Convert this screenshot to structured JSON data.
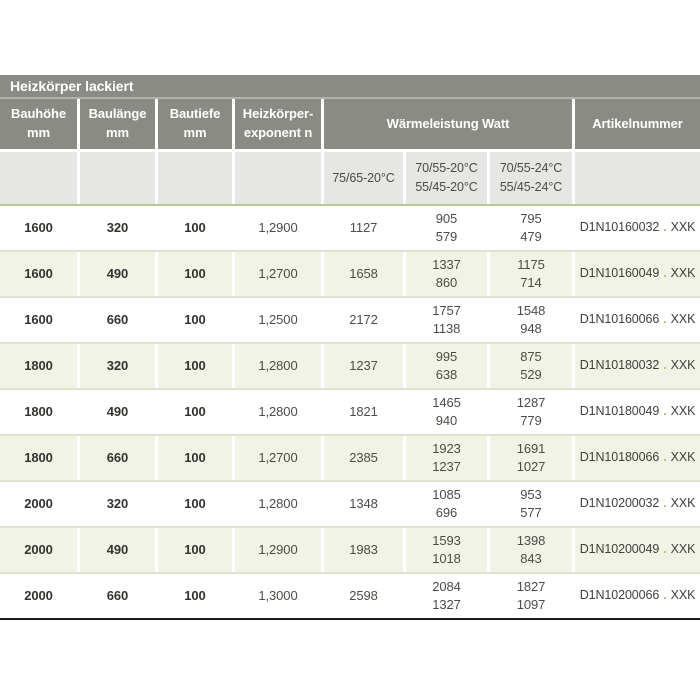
{
  "title_bar": {
    "label": "Heizkörper lackiert"
  },
  "header": {
    "columns": [
      {
        "line1": "Bauhöhe",
        "line2": "mm"
      },
      {
        "line1": "Baulänge",
        "line2": "mm"
      },
      {
        "line1": "Bautiefe",
        "line2": "mm"
      },
      {
        "line1": "Heizkörper-",
        "line2": "exponent n"
      },
      {
        "line1": "Artikelnummer",
        "line2": ""
      }
    ],
    "watt_group_label": "Wärmeleistung Watt",
    "subcolumns": [
      {
        "line1": "75/65-20°C",
        "line2": ""
      },
      {
        "line1": "70/55-20°C",
        "line2": "55/45-20°C"
      },
      {
        "line1": "70/55-24°C",
        "line2": "55/45-24°C"
      }
    ]
  },
  "separator_dot": ".",
  "rows": [
    {
      "bauhoehe": "1600",
      "baulaenge": "320",
      "bautiefe": "100",
      "exponent": "1,2900",
      "w1": "1127",
      "w2_top": "905",
      "w2_bottom": "579",
      "w3_top": "795",
      "w3_bottom": "479",
      "artikel": "D1N10160032",
      "suffix": "XXK"
    },
    {
      "bauhoehe": "1600",
      "baulaenge": "490",
      "bautiefe": "100",
      "exponent": "1,2700",
      "w1": "1658",
      "w2_top": "1337",
      "w2_bottom": "860",
      "w3_top": "1175",
      "w3_bottom": "714",
      "artikel": "D1N10160049",
      "suffix": "XXK"
    },
    {
      "bauhoehe": "1600",
      "baulaenge": "660",
      "bautiefe": "100",
      "exponent": "1,2500",
      "w1": "2172",
      "w2_top": "1757",
      "w2_bottom": "1138",
      "w3_top": "1548",
      "w3_bottom": "948",
      "artikel": "D1N10160066",
      "suffix": "XXK"
    },
    {
      "bauhoehe": "1800",
      "baulaenge": "320",
      "bautiefe": "100",
      "exponent": "1,2800",
      "w1": "1237",
      "w2_top": "995",
      "w2_bottom": "638",
      "w3_top": "875",
      "w3_bottom": "529",
      "artikel": "D1N10180032",
      "suffix": "XXK"
    },
    {
      "bauhoehe": "1800",
      "baulaenge": "490",
      "bautiefe": "100",
      "exponent": "1,2800",
      "w1": "1821",
      "w2_top": "1465",
      "w2_bottom": "940",
      "w3_top": "1287",
      "w3_bottom": "779",
      "artikel": "D1N10180049",
      "suffix": "XXK"
    },
    {
      "bauhoehe": "1800",
      "baulaenge": "660",
      "bautiefe": "100",
      "exponent": "1,2700",
      "w1": "2385",
      "w2_top": "1923",
      "w2_bottom": "1237",
      "w3_top": "1691",
      "w3_bottom": "1027",
      "artikel": "D1N10180066",
      "suffix": "XXK"
    },
    {
      "bauhoehe": "2000",
      "baulaenge": "320",
      "bautiefe": "100",
      "exponent": "1,2800",
      "w1": "1348",
      "w2_top": "1085",
      "w2_bottom": "696",
      "w3_top": "953",
      "w3_bottom": "577",
      "artikel": "D1N10200032",
      "suffix": "XXK"
    },
    {
      "bauhoehe": "2000",
      "baulaenge": "490",
      "bautiefe": "100",
      "exponent": "1,2900",
      "w1": "1983",
      "w2_top": "1593",
      "w2_bottom": "1018",
      "w3_top": "1398",
      "w3_bottom": "843",
      "artikel": "D1N10200049",
      "suffix": "XXK"
    },
    {
      "bauhoehe": "2000",
      "baulaenge": "660",
      "bautiefe": "100",
      "exponent": "1,3000",
      "w1": "2598",
      "w2_top": "2084",
      "w2_bottom": "1327",
      "w3_top": "1827",
      "w3_bottom": "1097",
      "artikel": "D1N10200066",
      "suffix": "XXK"
    }
  ],
  "colors": {
    "header_gray": "#8b8b86",
    "subheader_gray": "#e6e6e4",
    "row_alt_green": "#f1f3e7",
    "row_border_green": "#dde4cf",
    "green_accent_dot": "#a6c46c",
    "green_line": "#b4cc8e",
    "bottom_border": "#1d1d1a"
  }
}
